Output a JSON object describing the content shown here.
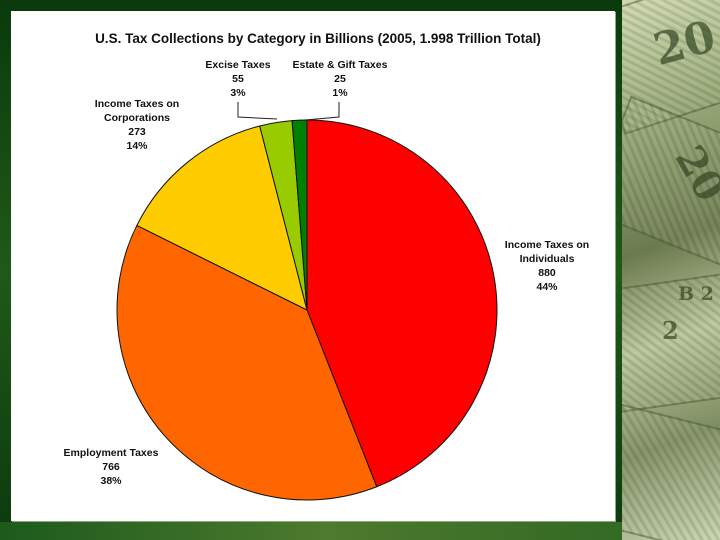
{
  "chart_data": {
    "type": "pie",
    "title": "U.S. Tax Collections by Category in Billions (2005, 1.998 Trillion Total)",
    "unit": "billions",
    "total": "1.998 Trillion",
    "slices": [
      {
        "name": "Income Taxes on Individuals",
        "label_lines": [
          "Income Taxes on",
          "Individuals"
        ],
        "value": 880,
        "value_text": "880",
        "percent_text": "44%",
        "color": "#ff0000"
      },
      {
        "name": "Employment Taxes",
        "label_lines": [
          "Employment Taxes"
        ],
        "value": 766,
        "value_text": "766",
        "percent_text": "38%",
        "color": "#ff6600"
      },
      {
        "name": "Income Taxes on Corporations",
        "label_lines": [
          "Income Taxes on",
          "Corporations"
        ],
        "value": 273,
        "value_text": "273",
        "percent_text": "14%",
        "color": "#ffcc00"
      },
      {
        "name": "Excise Taxes",
        "label_lines": [
          "Excise Taxes"
        ],
        "value": 55,
        "value_text": "55",
        "percent_text": "3%",
        "color": "#99cc00"
      },
      {
        "name": "Estate & Gift Taxes",
        "label_lines": [
          "Estate & Gift Taxes"
        ],
        "value": 25,
        "value_text": "25",
        "percent_text": "1%",
        "color": "#008000"
      }
    ]
  },
  "decor": {
    "money_glyphs": [
      "20",
      "20",
      "B 2",
      "2"
    ]
  }
}
